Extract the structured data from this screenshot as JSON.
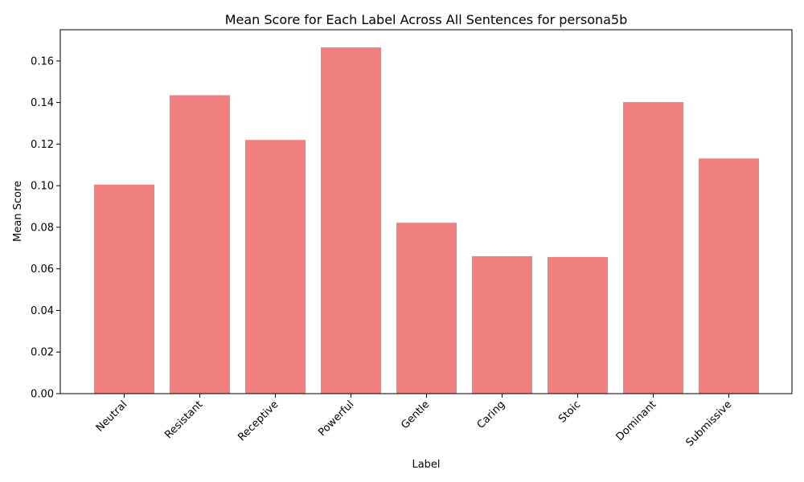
{
  "chart_data": {
    "type": "bar",
    "title": "Mean Score for Each Label Across All Sentences for persona5b",
    "xlabel": "Label",
    "ylabel": "Mean Score",
    "categories": [
      "Neutral",
      "Resistant",
      "Receptive",
      "Powerful",
      "Gentle",
      "Caring",
      "Stoic",
      "Dominant",
      "Submissive"
    ],
    "values": [
      0.1005,
      0.1435,
      0.122,
      0.1665,
      0.0822,
      0.0661,
      0.0657,
      0.1402,
      0.1131
    ],
    "ylim": [
      0,
      0.175
    ],
    "yticks": [
      "0.00",
      "0.02",
      "0.04",
      "0.06",
      "0.08",
      "0.10",
      "0.12",
      "0.14",
      "0.16"
    ],
    "grid": false,
    "bar_color": "#f08080"
  }
}
